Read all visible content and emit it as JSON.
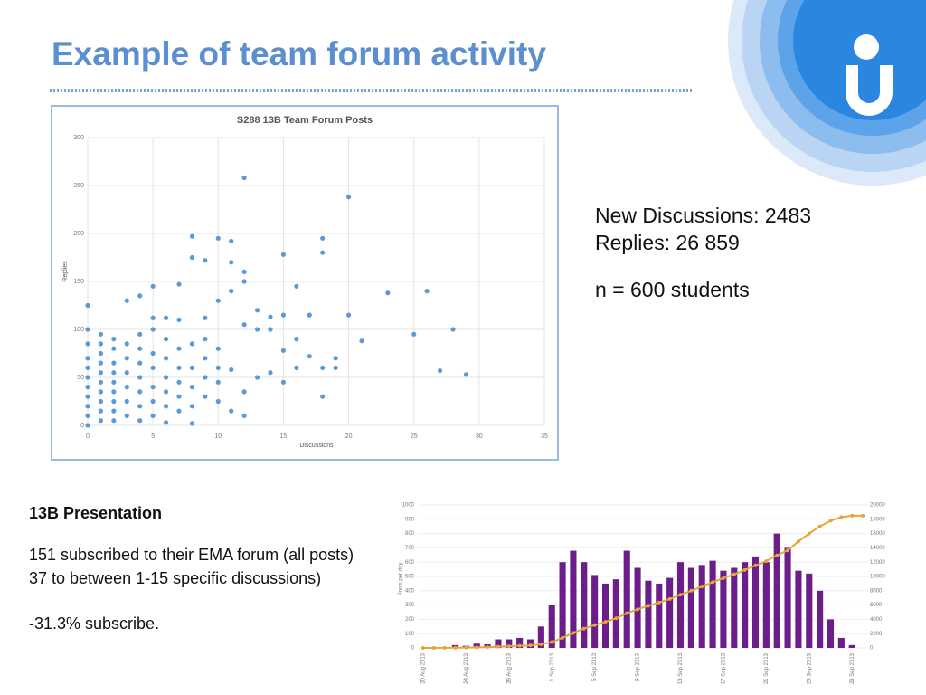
{
  "title": "Example of team forum activity",
  "stats": [
    "New Discussions: 2483",
    "Replies: 26 859",
    "n = 600 students"
  ],
  "presentation": {
    "heading": "13B Presentation",
    "lines": [
      "151 subscribed to their EMA forum (all posts)",
      "37 to between 1-15 specific discussions)",
      "-31.3% subscribe."
    ]
  },
  "chart_data": [
    {
      "type": "scatter",
      "title": "S288 13B Team Forum Posts",
      "x_label": "Discussions",
      "y_label": "Replies",
      "color": "#5b9bd5",
      "grid": true,
      "xlim": [
        0,
        35
      ],
      "xticks": [
        0,
        5,
        10,
        15,
        20,
        25,
        30,
        35
      ],
      "ylim": [
        0,
        300
      ],
      "yticks": [
        0,
        50,
        100,
        150,
        200,
        250,
        300
      ],
      "x": [
        0,
        0,
        0,
        0,
        0,
        0,
        0,
        0,
        0,
        0,
        0,
        1,
        1,
        1,
        1,
        1,
        1,
        1,
        1,
        1,
        1,
        2,
        2,
        2,
        2,
        2,
        2,
        2,
        2,
        2,
        3,
        3,
        3,
        3,
        3,
        3,
        3,
        4,
        4,
        4,
        4,
        4,
        4,
        4,
        4,
        5,
        5,
        5,
        5,
        5,
        5,
        5,
        5,
        6,
        6,
        6,
        6,
        6,
        6,
        6,
        7,
        7,
        7,
        7,
        7,
        7,
        7,
        8,
        8,
        8,
        8,
        8,
        8,
        8,
        9,
        9,
        9,
        9,
        9,
        9,
        10,
        10,
        10,
        10,
        10,
        10,
        11,
        11,
        11,
        11,
        11,
        12,
        12,
        12,
        12,
        12,
        12,
        13,
        13,
        13,
        14,
        14,
        14,
        15,
        15,
        15,
        15,
        16,
        16,
        16,
        17,
        17,
        18,
        18,
        18,
        18,
        19,
        19,
        20,
        20,
        21,
        23,
        25,
        26,
        27,
        28,
        29
      ],
      "y": [
        0,
        10,
        20,
        30,
        40,
        50,
        60,
        70,
        85,
        100,
        125,
        5,
        15,
        25,
        35,
        45,
        55,
        65,
        75,
        85,
        95,
        5,
        15,
        25,
        35,
        45,
        55,
        65,
        80,
        90,
        10,
        25,
        40,
        55,
        70,
        85,
        130,
        5,
        20,
        35,
        50,
        65,
        80,
        95,
        135,
        10,
        25,
        40,
        60,
        75,
        100,
        112,
        145,
        3,
        20,
        35,
        50,
        70,
        90,
        112,
        15,
        30,
        45,
        60,
        80,
        110,
        147,
        2,
        20,
        40,
        60,
        85,
        197,
        175,
        30,
        50,
        70,
        90,
        112,
        172,
        25,
        45,
        60,
        80,
        130,
        195,
        15,
        58,
        140,
        170,
        192,
        10,
        35,
        105,
        150,
        160,
        258,
        50,
        100,
        120,
        55,
        100,
        113,
        45,
        78,
        115,
        178,
        60,
        90,
        145,
        72,
        115,
        30,
        60,
        180,
        195,
        60,
        70,
        115,
        238,
        88,
        138,
        95,
        140,
        57,
        100,
        53
      ]
    },
    {
      "type": "bar",
      "y_label": "Posts per day",
      "categories": [
        "20 Aug 2013",
        null,
        null,
        null,
        "24 Aug 2013",
        null,
        null,
        null,
        "28 Aug 2013",
        null,
        null,
        null,
        "1 Sep 2013",
        null,
        null,
        null,
        "5 Sep 2013",
        null,
        null,
        null,
        "9 Sep 2013",
        null,
        null,
        null,
        "13 Sep 2013",
        null,
        null,
        null,
        "17 Sep 2013",
        null,
        null,
        null,
        "21 Sep 2013",
        null,
        null,
        null,
        "25 Sep 2013",
        null,
        null,
        null,
        "29 Sep 2013",
        null
      ],
      "ylim": [
        0,
        1000
      ],
      "yticks": [
        0,
        100,
        200,
        300,
        400,
        500,
        600,
        700,
        800,
        900,
        1000
      ],
      "y2lim": [
        0,
        20000
      ],
      "y2ticks": [
        0,
        2000,
        4000,
        6000,
        8000,
        10000,
        12000,
        14000,
        16000,
        18000,
        20000
      ],
      "series": [
        {
          "color": "#6b1d8a",
          "values": [
            0,
            2,
            5,
            20,
            15,
            30,
            25,
            60,
            60,
            70,
            60,
            150,
            300,
            600,
            680,
            600,
            510,
            450,
            480,
            680,
            560,
            470,
            450,
            490,
            600,
            560,
            580,
            610,
            540,
            560,
            600,
            640,
            600,
            800,
            700,
            540,
            520,
            400,
            200,
            70,
            20,
            0
          ]
        },
        {
          "color": "#e8a33c",
          "axis": "y2",
          "values": [
            0,
            0,
            10,
            30,
            50,
            80,
            110,
            170,
            230,
            300,
            370,
            520,
            820,
            1420,
            2100,
            2700,
            3200,
            3650,
            4150,
            4850,
            5400,
            5900,
            6350,
            6850,
            7450,
            8000,
            8600,
            9200,
            9750,
            10300,
            10900,
            11550,
            12150,
            12950,
            13650,
            14900,
            16000,
            17000,
            17800,
            18300,
            18500,
            18500
          ]
        }
      ]
    }
  ]
}
